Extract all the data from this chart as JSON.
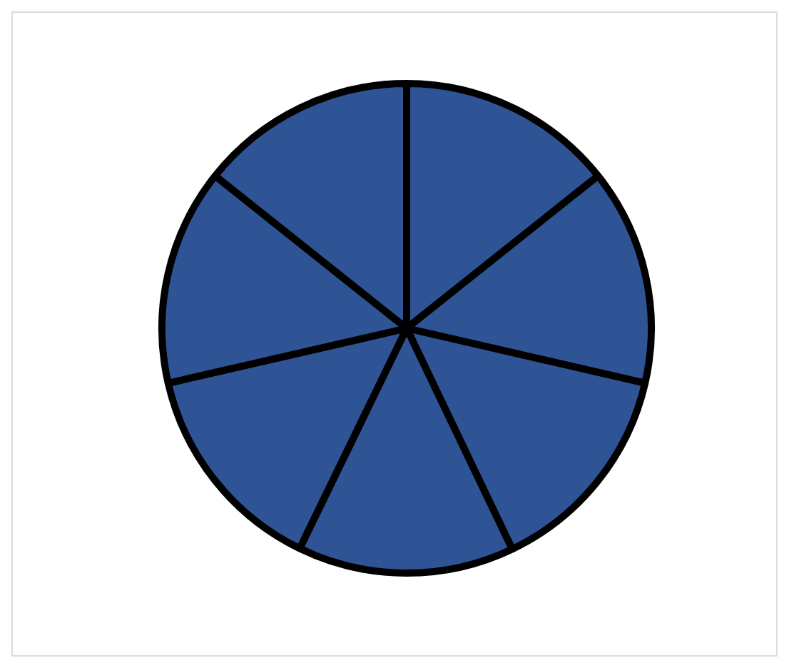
{
  "chart_data": {
    "type": "pie",
    "categories": [
      null,
      null,
      null,
      null,
      null,
      null,
      null
    ],
    "values": [
      14.3,
      14.3,
      14.3,
      14.3,
      14.2,
      14.3,
      14.3
    ],
    "colors": [
      "#2f5496",
      "#2f5496",
      "#2f5496",
      "#2f5496",
      "#2f5496",
      "#2f5496",
      "#2f5496"
    ]
  }
}
